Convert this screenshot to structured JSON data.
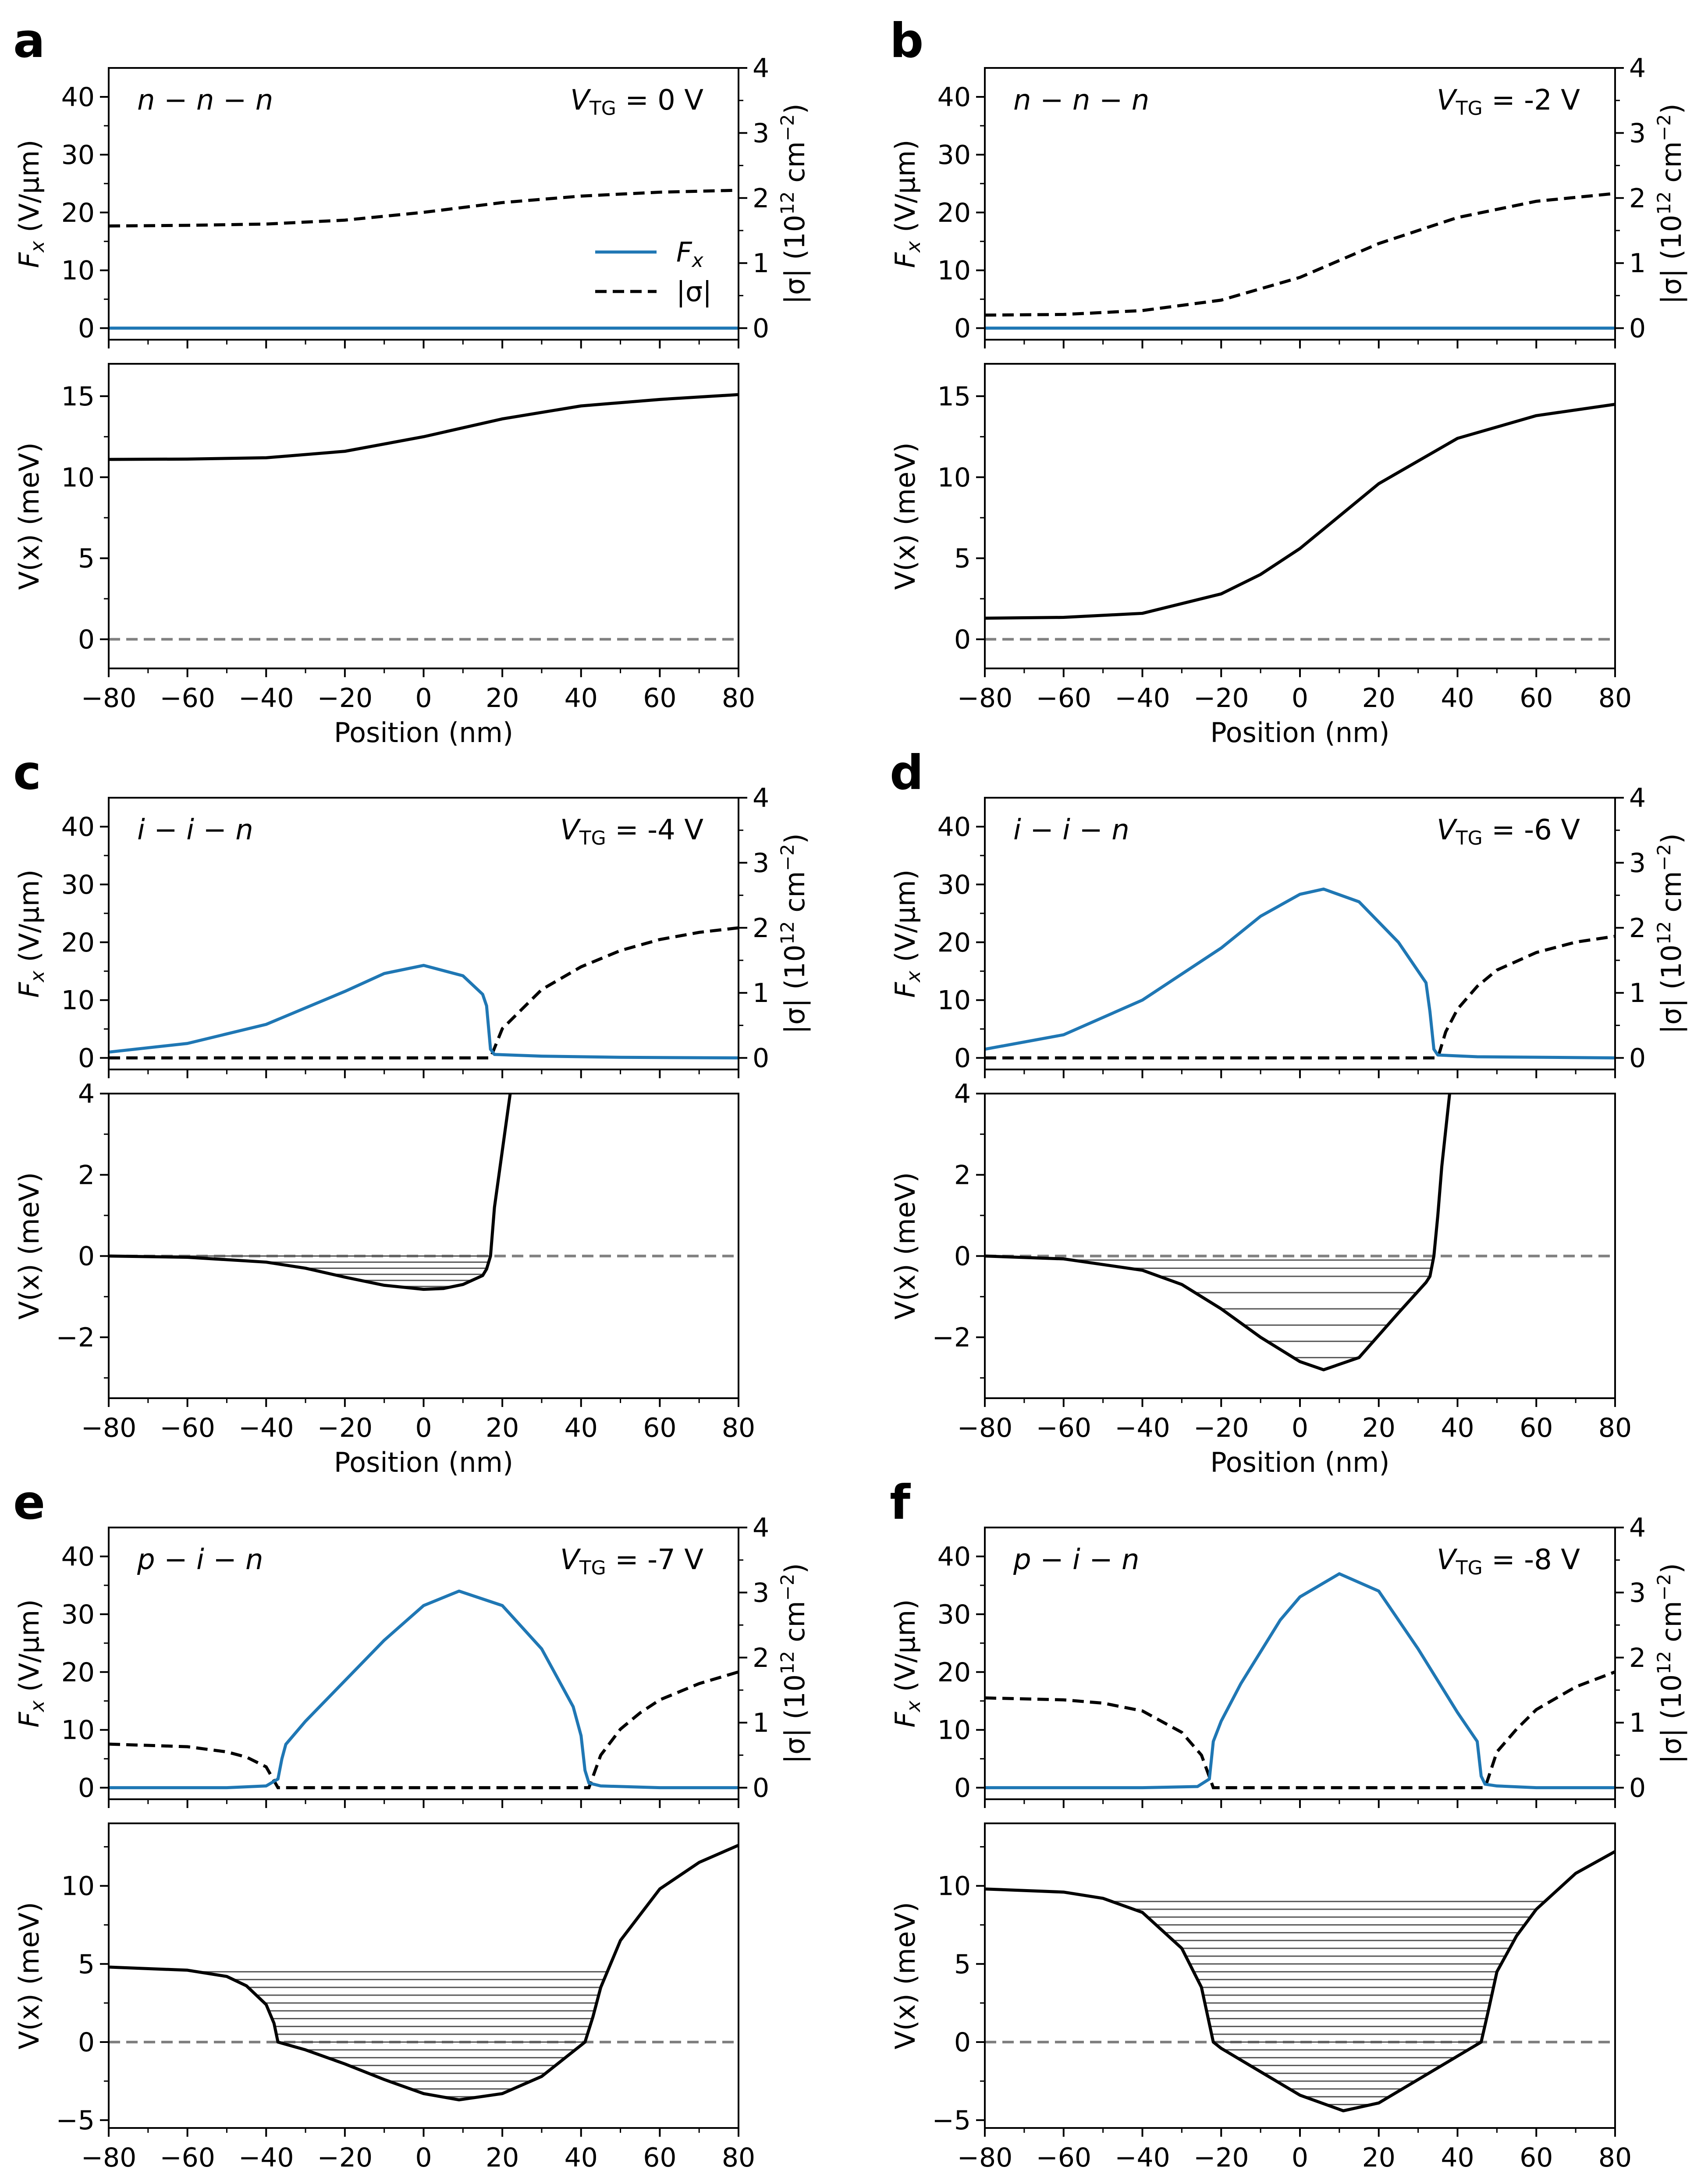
{
  "figure": {
    "x_tick_labels": [
      "−80",
      "−60",
      "−40",
      "−20",
      "0",
      "20",
      "40",
      "60",
      "80"
    ],
    "x_label": "Position (nm)",
    "fx_label_main": "F",
    "fx_label_sub": "x",
    "fx_label_unit": " (V/μm)",
    "v_label": "V(x) (meV)",
    "sigma_label": "|σ| (10",
    "sigma_label_exp": "12",
    "sigma_label_unit": " cm",
    "sigma_label_unit_exp": "−2",
    "sigma_label_end": ")",
    "fx_ticks": [
      "0",
      "10",
      "20",
      "30",
      "40"
    ],
    "sigma_ticks": [
      "0",
      "1",
      "2",
      "3",
      "4"
    ],
    "legend": {
      "fx": "F",
      "fx_sub": "x",
      "sigma": "|σ|"
    },
    "vtg_prefix": "V",
    "vtg_sub": "TG",
    "colors": {
      "fx": "#1f77b4",
      "sigma": "#000000",
      "potential": "#000000",
      "zero_line": "#808080",
      "levels": "#555555"
    }
  },
  "chart_data": [
    {
      "panel": "a",
      "type": "line",
      "regime": "n − n − n",
      "vtg": "= 0 V",
      "x_range": [
        -80,
        80
      ],
      "top": {
        "ylim_fx": [
          -2,
          45
        ],
        "ylim_sigma": [
          -0.178,
          4
        ],
        "fx": {
          "x": [
            -80,
            80
          ],
          "y": [
            0,
            0
          ]
        },
        "sigma": {
          "x": [
            -80,
            -60,
            -40,
            -20,
            0,
            20,
            40,
            60,
            80
          ],
          "y": [
            1.57,
            1.58,
            1.6,
            1.66,
            1.78,
            1.93,
            2.03,
            2.09,
            2.12
          ]
        }
      },
      "bottom": {
        "ylim": [
          -1.8,
          17
        ],
        "yticks": [
          0,
          5,
          10,
          15
        ],
        "ytick_labels": [
          "0",
          "5",
          "10",
          "15"
        ],
        "potential": {
          "x": [
            -80,
            -60,
            -40,
            -20,
            0,
            20,
            40,
            60,
            80
          ],
          "y": [
            11.1,
            11.12,
            11.2,
            11.6,
            12.5,
            13.6,
            14.4,
            14.8,
            15.1
          ]
        },
        "levels": []
      }
    },
    {
      "panel": "b",
      "type": "line",
      "regime": "n − n − n",
      "vtg": "= -2 V",
      "x_range": [
        -80,
        80
      ],
      "top": {
        "ylim_fx": [
          -2,
          45
        ],
        "ylim_sigma": [
          -0.178,
          4
        ],
        "fx": {
          "x": [
            -80,
            80
          ],
          "y": [
            0,
            0
          ]
        },
        "sigma": {
          "x": [
            -80,
            -60,
            -40,
            -20,
            0,
            20,
            40,
            60,
            80
          ],
          "y": [
            0.2,
            0.21,
            0.27,
            0.43,
            0.78,
            1.3,
            1.7,
            1.95,
            2.07
          ]
        }
      },
      "bottom": {
        "ylim": [
          -1.8,
          17
        ],
        "yticks": [
          0,
          5,
          10,
          15
        ],
        "ytick_labels": [
          "0",
          "5",
          "10",
          "15"
        ],
        "potential": {
          "x": [
            -80,
            -60,
            -40,
            -20,
            -10,
            0,
            10,
            20,
            40,
            60,
            80
          ],
          "y": [
            1.3,
            1.35,
            1.6,
            2.8,
            4.0,
            5.6,
            7.6,
            9.6,
            12.4,
            13.8,
            14.5
          ]
        },
        "levels": []
      }
    },
    {
      "panel": "c",
      "type": "line",
      "regime": "i − i − n",
      "vtg": "= -4 V",
      "x_range": [
        -80,
        80
      ],
      "top": {
        "ylim_fx": [
          -2,
          45
        ],
        "ylim_sigma": [
          -0.178,
          4
        ],
        "fx": {
          "x": [
            -80,
            -60,
            -40,
            -20,
            -10,
            0,
            10,
            15,
            16,
            17,
            18,
            30,
            50,
            80
          ],
          "y": [
            1,
            2.5,
            5.8,
            11.5,
            14.6,
            16,
            14.2,
            11,
            9,
            1.5,
            0.6,
            0.3,
            0.1,
            0
          ]
        },
        "sigma": {
          "x": [
            -80,
            17,
            20,
            30,
            40,
            50,
            60,
            70,
            80
          ],
          "y": [
            0,
            0,
            0.45,
            1.05,
            1.4,
            1.65,
            1.82,
            1.93,
            2.0
          ]
        }
      },
      "bottom": {
        "ylim": [
          -3.5,
          4
        ],
        "yticks": [
          -2,
          0,
          2,
          4
        ],
        "ytick_labels": [
          "−2",
          "0",
          "2",
          "4"
        ],
        "potential": {
          "x": [
            -80,
            -60,
            -40,
            -30,
            -20,
            -10,
            0,
            5,
            10,
            15,
            16,
            17,
            18,
            20,
            22
          ],
          "y": [
            0,
            -0.03,
            -0.15,
            -0.3,
            -0.52,
            -0.72,
            -0.82,
            -0.8,
            -0.7,
            -0.48,
            -0.32,
            0,
            1.2,
            2.6,
            4.0
          ]
        },
        "levels": [
          -0.75,
          -0.6,
          -0.45,
          -0.3,
          -0.15,
          0
        ]
      }
    },
    {
      "panel": "d",
      "type": "line",
      "regime": "i − i − n",
      "vtg": "= -6 V",
      "x_range": [
        -80,
        80
      ],
      "top": {
        "ylim_fx": [
          -2,
          45
        ],
        "ylim_sigma": [
          -0.178,
          4
        ],
        "fx": {
          "x": [
            -80,
            -60,
            -40,
            -20,
            -10,
            0,
            6,
            15,
            25,
            30,
            32,
            33,
            34,
            35,
            45,
            80
          ],
          "y": [
            1.5,
            4,
            10,
            19,
            24.5,
            28.3,
            29.2,
            27,
            20,
            15,
            13,
            8,
            1.5,
            0.5,
            0.2,
            0
          ]
        },
        "sigma": {
          "x": [
            -80,
            35,
            37,
            40,
            45,
            50,
            60,
            70,
            80
          ],
          "y": [
            0,
            0,
            0.4,
            0.75,
            1.1,
            1.35,
            1.62,
            1.78,
            1.87
          ]
        }
      },
      "bottom": {
        "ylim": [
          -3.5,
          4
        ],
        "yticks": [
          -2,
          0,
          2,
          4
        ],
        "ytick_labels": [
          "−2",
          "0",
          "2",
          "4"
        ],
        "potential": {
          "x": [
            -80,
            -60,
            -40,
            -30,
            -20,
            -10,
            0,
            6,
            15,
            25,
            32,
            33,
            34,
            35,
            36,
            38
          ],
          "y": [
            0,
            -0.07,
            -0.35,
            -0.7,
            -1.3,
            -2.0,
            -2.6,
            -2.8,
            -2.5,
            -1.4,
            -0.65,
            -0.5,
            0,
            1.0,
            2.2,
            4.0
          ]
        },
        "levels": [
          -2.5,
          -2.1,
          -1.7,
          -1.3,
          -0.9,
          -0.5,
          -0.3,
          -0.1
        ]
      }
    },
    {
      "panel": "e",
      "type": "line",
      "regime": "p − i − n",
      "vtg": "= -7 V",
      "x_range": [
        -80,
        80
      ],
      "top": {
        "ylim_fx": [
          -2,
          45
        ],
        "ylim_sigma": [
          -0.178,
          4
        ],
        "fx": {
          "x": [
            -80,
            -50,
            -40,
            -37,
            -36,
            -35,
            -30,
            -20,
            -10,
            0,
            9,
            20,
            30,
            38,
            40,
            41,
            42,
            45,
            60,
            80
          ],
          "y": [
            0,
            0,
            0.3,
            1.5,
            5,
            7.5,
            11.5,
            18.5,
            25.5,
            31.5,
            34,
            31.5,
            24,
            14,
            9,
            3,
            0.8,
            0.3,
            0,
            0
          ]
        },
        "sigma": {
          "x": [
            -80,
            -60,
            -50,
            -45,
            -40,
            -37,
            42,
            45,
            50,
            55,
            60,
            70,
            80
          ],
          "y": [
            0.67,
            0.63,
            0.55,
            0.47,
            0.32,
            0,
            0,
            0.5,
            0.9,
            1.15,
            1.35,
            1.6,
            1.78
          ]
        }
      },
      "bottom": {
        "ylim": [
          -5.5,
          14
        ],
        "yticks": [
          -5,
          0,
          5,
          10
        ],
        "ytick_labels": [
          "−5",
          "0",
          "5",
          "10"
        ],
        "potential": {
          "x": [
            -80,
            -60,
            -50,
            -45,
            -40,
            -38,
            -37,
            -30,
            -20,
            -10,
            0,
            9,
            20,
            30,
            41,
            43,
            45,
            50,
            60,
            70,
            80
          ],
          "y": [
            4.8,
            4.6,
            4.2,
            3.6,
            2.4,
            1.2,
            0,
            -0.5,
            -1.4,
            -2.4,
            -3.3,
            -3.7,
            -3.3,
            -2.2,
            0,
            1.6,
            3.5,
            6.5,
            9.8,
            11.5,
            12.6
          ]
        },
        "levels": [
          -3.5,
          -3.0,
          -2.5,
          -2.0,
          -1.5,
          -1.0,
          -0.5,
          0,
          0.5,
          1.0,
          1.5,
          2.0,
          2.5,
          3.0,
          3.5,
          4.0,
          4.5
        ]
      }
    },
    {
      "panel": "f",
      "type": "line",
      "regime": "p − i − n",
      "vtg": "= -8 V",
      "x_range": [
        -80,
        80
      ],
      "top": {
        "ylim_fx": [
          -2,
          45
        ],
        "ylim_sigma": [
          -0.178,
          4
        ],
        "fx": {
          "x": [
            -80,
            -40,
            -26,
            -23,
            -22,
            -20,
            -15,
            -5,
            0,
            10,
            20,
            30,
            40,
            45,
            46,
            47,
            50,
            60,
            80
          ],
          "y": [
            0,
            0,
            0.2,
            1.5,
            8,
            11.5,
            18,
            29,
            33,
            37,
            34,
            24,
            13,
            8,
            2,
            0.6,
            0.3,
            0,
            0
          ]
        },
        "sigma": {
          "x": [
            -80,
            -60,
            -50,
            -40,
            -30,
            -25,
            -22,
            47,
            50,
            55,
            60,
            70,
            80
          ],
          "y": [
            1.38,
            1.35,
            1.3,
            1.18,
            0.85,
            0.5,
            0,
            0,
            0.55,
            0.9,
            1.2,
            1.55,
            1.78
          ]
        }
      },
      "bottom": {
        "ylim": [
          -5.5,
          14
        ],
        "yticks": [
          -5,
          0,
          5,
          10
        ],
        "ytick_labels": [
          "−5",
          "0",
          "5",
          "10"
        ],
        "potential": {
          "x": [
            -80,
            -60,
            -50,
            -40,
            -30,
            -25,
            -22,
            -20,
            -10,
            0,
            11,
            20,
            30,
            40,
            46,
            48,
            50,
            55,
            60,
            70,
            80
          ],
          "y": [
            9.8,
            9.6,
            9.2,
            8.3,
            6.0,
            3.5,
            0,
            -0.4,
            -1.9,
            -3.4,
            -4.4,
            -3.9,
            -2.4,
            -0.9,
            0,
            2.2,
            4.5,
            6.8,
            8.5,
            10.8,
            12.2
          ]
        },
        "levels": [
          -4.0,
          -3.5,
          -3.0,
          -2.5,
          -2.0,
          -1.5,
          -1.0,
          -0.5,
          0,
          0.5,
          1.0,
          1.5,
          2.0,
          2.5,
          3.0,
          3.5,
          4.0,
          4.5,
          5.0,
          5.5,
          6.0,
          6.5,
          7.0,
          7.5,
          8.0,
          8.5,
          9.0
        ]
      }
    }
  ]
}
